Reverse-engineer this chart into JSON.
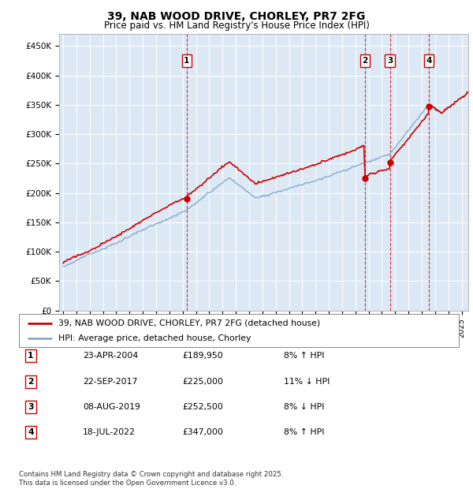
{
  "title": "39, NAB WOOD DRIVE, CHORLEY, PR7 2FG",
  "subtitle": "Price paid vs. HM Land Registry's House Price Index (HPI)",
  "background_color": "#dce9f5",
  "plot_bg_color": "#dce9f5",
  "red_line_color": "#cc0000",
  "blue_line_color": "#88aacc",
  "ylim": [
    0,
    470000
  ],
  "yticks": [
    0,
    50000,
    100000,
    150000,
    200000,
    250000,
    300000,
    350000,
    400000,
    450000
  ],
  "ytick_labels": [
    "£0",
    "£50K",
    "£100K",
    "£150K",
    "£200K",
    "£250K",
    "£300K",
    "£350K",
    "£400K",
    "£450K"
  ],
  "transactions": [
    {
      "num": 1,
      "date": "23-APR-2004",
      "price": 189950,
      "pct": "8% ↑ HPI",
      "x_year": 2004.31
    },
    {
      "num": 2,
      "date": "22-SEP-2017",
      "price": 225000,
      "pct": "11% ↓ HPI",
      "x_year": 2017.72
    },
    {
      "num": 3,
      "date": "08-AUG-2019",
      "price": 252500,
      "pct": "8% ↓ HPI",
      "x_year": 2019.6
    },
    {
      "num": 4,
      "date": "18-JUL-2022",
      "price": 347000,
      "pct": "8% ↑ HPI",
      "x_year": 2022.54
    }
  ],
  "legend_label_red": "39, NAB WOOD DRIVE, CHORLEY, PR7 2FG (detached house)",
  "legend_label_blue": "HPI: Average price, detached house, Chorley",
  "footer": "Contains HM Land Registry data © Crown copyright and database right 2025.\nThis data is licensed under the Open Government Licence v3.0.",
  "xlim_start": 1994.7,
  "xlim_end": 2025.5,
  "table_entries": [
    [
      "1",
      "23-APR-2004",
      "£189,950",
      "8% ↑ HPI"
    ],
    [
      "2",
      "22-SEP-2017",
      "£225,000",
      "11% ↓ HPI"
    ],
    [
      "3",
      "08-AUG-2019",
      "£252,500",
      "8% ↓ HPI"
    ],
    [
      "4",
      "18-JUL-2022",
      "£347,000",
      "8% ↑ HPI"
    ]
  ]
}
